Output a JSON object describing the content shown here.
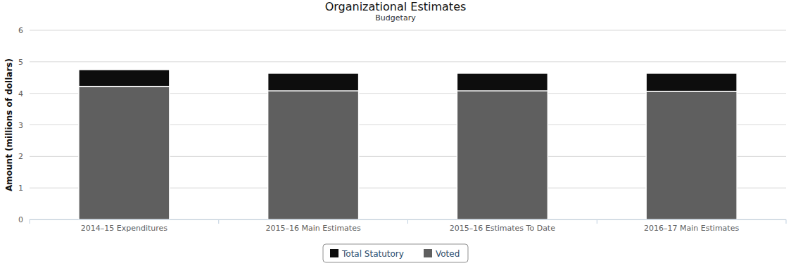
{
  "chart_data": {
    "type": "bar",
    "stacked": true,
    "title": "Organizational Estimates",
    "subtitle": "Budgetary",
    "y_label": "Amount (millions of dollars)",
    "categories": [
      "2014–15 Expenditures",
      "2015–16 Main Estimates",
      "2015–16 Estimates To Date",
      "2016–17 Main Estimates"
    ],
    "series": [
      {
        "name": "Total Statutory",
        "color": "#0d0d0d",
        "values": [
          0.53,
          0.56,
          0.56,
          0.58
        ]
      },
      {
        "name": "Voted",
        "color": "#5f5f5f",
        "values": [
          4.22,
          4.08,
          4.08,
          4.06
        ]
      }
    ],
    "ylim": [
      0,
      6
    ],
    "yticks": [
      0,
      1,
      2,
      3,
      4,
      5,
      6
    ],
    "grid": true,
    "legend": "bottom"
  }
}
